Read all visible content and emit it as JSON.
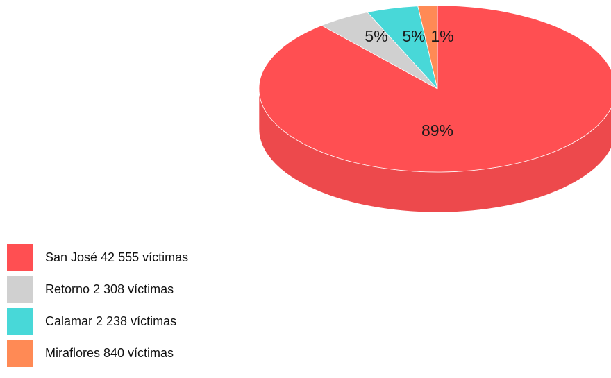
{
  "chart_data": {
    "type": "pie",
    "title": "",
    "categories": [
      "San José",
      "Retorno",
      "Calamar",
      "Miraflores"
    ],
    "values": [
      42555,
      2308,
      2238,
      840
    ],
    "percent_labels": [
      "89%",
      "5%",
      "5%",
      "1%"
    ],
    "colors": [
      "#FF4F52",
      "#D0D0D0",
      "#48D8D8",
      "#FF8A55"
    ],
    "legend_placement": "bottom-left",
    "legend": [
      {
        "label": "San José 42 555 víctimas",
        "color": "#FF4F52"
      },
      {
        "label": "Retorno 2 308 víctimas",
        "color": "#D0D0D0"
      },
      {
        "label": "Calamar 2 238 víctimas",
        "color": "#48D8D8"
      },
      {
        "label": "Miraflores 840 víctimas",
        "color": "#FF8A55"
      }
    ]
  }
}
